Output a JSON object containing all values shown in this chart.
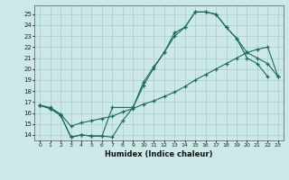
{
  "xlabel": "Humidex (Indice chaleur)",
  "bg_color": "#cce8e8",
  "grid_color": "#aacccc",
  "line_color": "#1a6b5a",
  "xlim": [
    -0.5,
    23.5
  ],
  "ylim": [
    13.5,
    25.8
  ],
  "xticks": [
    0,
    1,
    2,
    3,
    4,
    5,
    6,
    7,
    8,
    9,
    10,
    11,
    12,
    13,
    14,
    15,
    16,
    17,
    18,
    19,
    20,
    21,
    22,
    23
  ],
  "yticks": [
    14,
    15,
    16,
    17,
    18,
    19,
    20,
    21,
    22,
    23,
    24,
    25
  ],
  "line1_x": [
    0,
    1,
    2,
    3,
    4,
    5,
    6,
    7,
    8,
    9,
    10,
    11,
    12,
    13,
    14,
    15,
    16,
    17,
    18,
    19,
    20,
    21,
    22
  ],
  "line1_y": [
    16.7,
    16.4,
    15.8,
    13.8,
    14.0,
    13.9,
    13.9,
    13.8,
    15.3,
    16.5,
    18.5,
    20.1,
    21.5,
    23.0,
    23.8,
    25.2,
    25.2,
    25.0,
    23.8,
    22.8,
    21.0,
    20.5,
    19.3
  ],
  "line2_x": [
    0,
    1,
    2,
    3,
    4,
    5,
    6,
    7,
    9,
    10,
    11,
    12,
    13,
    14,
    15,
    16,
    17,
    18,
    19,
    20,
    21,
    22,
    23
  ],
  "line2_y": [
    16.7,
    16.4,
    15.8,
    13.8,
    14.0,
    13.9,
    13.9,
    16.5,
    16.5,
    18.8,
    20.2,
    21.5,
    23.3,
    23.8,
    25.2,
    25.2,
    25.0,
    23.8,
    22.8,
    21.5,
    21.0,
    20.5,
    19.3
  ],
  "line3_x": [
    0,
    1,
    2,
    3,
    4,
    5,
    6,
    7,
    8,
    9,
    10,
    11,
    12,
    13,
    14,
    15,
    16,
    17,
    18,
    19,
    20,
    21,
    22,
    23
  ],
  "line3_y": [
    16.7,
    16.5,
    15.9,
    14.8,
    15.1,
    15.3,
    15.5,
    15.7,
    16.1,
    16.4,
    16.8,
    17.1,
    17.5,
    17.9,
    18.4,
    19.0,
    19.5,
    20.0,
    20.5,
    21.0,
    21.5,
    21.8,
    22.0,
    19.3
  ]
}
